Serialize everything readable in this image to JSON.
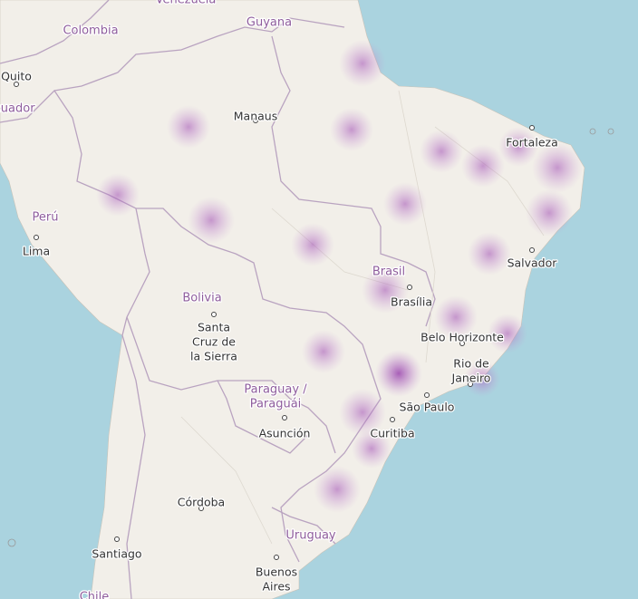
{
  "map": {
    "countries": [
      {
        "label": [
          "Venezuela"
        ]
      },
      {
        "label": [
          "Guyana"
        ]
      },
      {
        "label": [
          "Colombia"
        ]
      },
      {
        "label": [
          "Ecuador"
        ]
      },
      {
        "label": [
          "Perú"
        ]
      },
      {
        "label": [
          "Brasil"
        ]
      },
      {
        "label": [
          "Bolivia"
        ]
      },
      {
        "label": [
          "Paraguay /",
          "Paraguái"
        ]
      },
      {
        "label": [
          "Uruguay"
        ]
      },
      {
        "label": [
          "Chile"
        ]
      }
    ],
    "cities": [
      {
        "label": [
          "Quito"
        ]
      },
      {
        "label": [
          "Manaus"
        ]
      },
      {
        "label": [
          "Lima"
        ]
      },
      {
        "label": [
          "Fortaleza"
        ]
      },
      {
        "label": [
          "Brasília"
        ]
      },
      {
        "label": [
          "Salvador"
        ]
      },
      {
        "label": [
          "Santa",
          "Cruz de",
          "la Sierra"
        ]
      },
      {
        "label": [
          "Belo Horizonte"
        ]
      },
      {
        "label": [
          "Rio de",
          "Janeiro"
        ]
      },
      {
        "label": [
          "São Paulo"
        ]
      },
      {
        "label": [
          "Asunción"
        ]
      },
      {
        "label": [
          "Curitiba"
        ]
      },
      {
        "label": [
          "Córdoba"
        ]
      },
      {
        "label": [
          "Santiago"
        ]
      },
      {
        "label": [
          "Buenos",
          "Aires"
        ]
      }
    ]
  }
}
